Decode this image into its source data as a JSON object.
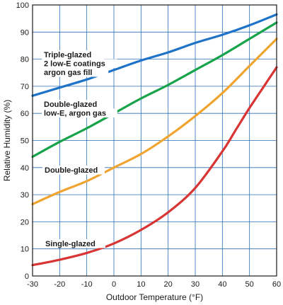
{
  "chart_data": {
    "type": "line",
    "xlabel": "Outdoor Temperature (°F)",
    "ylabel": "Relative Humidity (%)",
    "xlim": [
      -30,
      60
    ],
    "ylim": [
      0,
      100
    ],
    "x_ticks": [
      "-30",
      "-20",
      "-10",
      "0",
      "10",
      "20",
      "30",
      "40",
      "50",
      "60"
    ],
    "y_ticks": [
      "0",
      "10",
      "20",
      "30",
      "40",
      "50",
      "60",
      "70",
      "80",
      "90",
      "100"
    ],
    "grid": true,
    "series": [
      {
        "label_lines": [
          "Triple-glazed",
          "2 low-E coatings",
          "argon gas fill"
        ],
        "color": "#1e72c8",
        "x": [
          -30,
          -20,
          -10,
          0,
          10,
          20,
          30,
          40,
          50,
          60
        ],
        "y": [
          66.5,
          69.5,
          72.5,
          76,
          79.5,
          82.5,
          86,
          89,
          92.5,
          96.5
        ]
      },
      {
        "label_lines": [
          "Double-glazed",
          "low-E, argon gas"
        ],
        "color": "#17a34a",
        "x": [
          -30,
          -20,
          -10,
          0,
          10,
          20,
          30,
          40,
          50,
          60
        ],
        "y": [
          44,
          49.5,
          54.5,
          60,
          65.5,
          70.5,
          76,
          81.5,
          87.5,
          93.5
        ]
      },
      {
        "label_lines": [
          "Double-glazed"
        ],
        "color": "#f0a430",
        "x": [
          -30,
          -20,
          -10,
          0,
          10,
          20,
          30,
          40,
          50,
          60
        ],
        "y": [
          26.5,
          31,
          35,
          40,
          45,
          51.5,
          59,
          67.5,
          77.5,
          87.5
        ]
      },
      {
        "label_lines": [
          "Single-glazed"
        ],
        "color": "#d93434",
        "x": [
          -30,
          -20,
          -10,
          0,
          10,
          20,
          30,
          40,
          45,
          50,
          55,
          60
        ],
        "y": [
          4,
          6,
          8.5,
          12,
          17,
          23.5,
          32.5,
          46,
          54,
          62,
          69.5,
          77
        ]
      }
    ]
  }
}
